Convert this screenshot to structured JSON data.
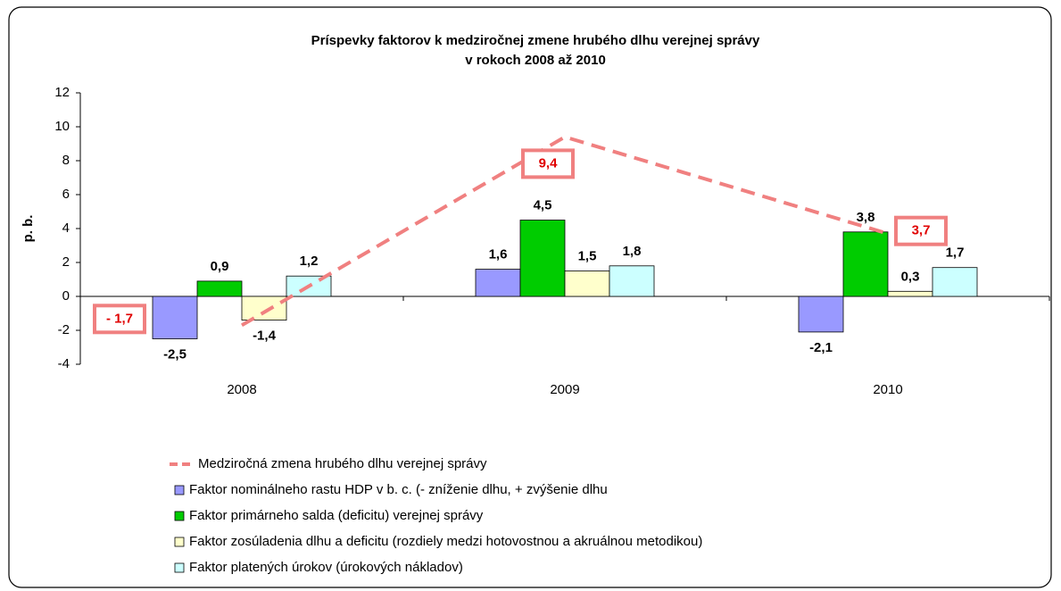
{
  "chart_data": {
    "type": "bar",
    "title": [
      "Príspevky faktorov k medziročnej zmene hrubého dlhu verejnej správy",
      "v rokoch 2008 až 2010"
    ],
    "y_label": "p. b.",
    "categories": [
      "2008",
      "2009",
      "2010"
    ],
    "ylim": [
      -4,
      12
    ],
    "yticks": [
      -4,
      -2,
      0,
      2,
      4,
      6,
      8,
      10,
      12
    ],
    "line": {
      "name": "Medziročná zmena hrubého dlhu verejnej správy",
      "color": "#f08080",
      "values": [
        -1.7,
        9.4,
        3.7
      ],
      "value_labels": [
        "- 1,7",
        "9,4",
        "3,7"
      ]
    },
    "series": [
      {
        "name": "Faktor nominálneho rastu HDP v b. c. (- zníženie dlhu, + zvýšenie dlhu",
        "color": "#9999ff",
        "values": [
          -2.5,
          1.6,
          -2.1
        ],
        "value_labels": [
          "-2,5",
          "1,6",
          "-2,1"
        ]
      },
      {
        "name": "Faktor primárneho salda (deficitu) verejnej správy",
        "color": "#00cc00",
        "values": [
          0.9,
          4.5,
          3.8
        ],
        "value_labels": [
          "0,9",
          "4,5",
          "3,8"
        ]
      },
      {
        "name": "Faktor zosúladenia dlhu a deficitu (rozdiely medzi hotovostnou a akruálnou metodikou)",
        "color": "#ffffcc",
        "values": [
          -1.4,
          1.5,
          0.3
        ],
        "value_labels": [
          "-1,4",
          "1,5",
          "0,3"
        ]
      },
      {
        "name": "Faktor platených úrokov (úrokových nákladov)",
        "color": "#ccffff",
        "values": [
          1.2,
          1.8,
          1.7
        ],
        "value_labels": [
          "1,2",
          "1,8",
          "1,7"
        ]
      }
    ]
  }
}
